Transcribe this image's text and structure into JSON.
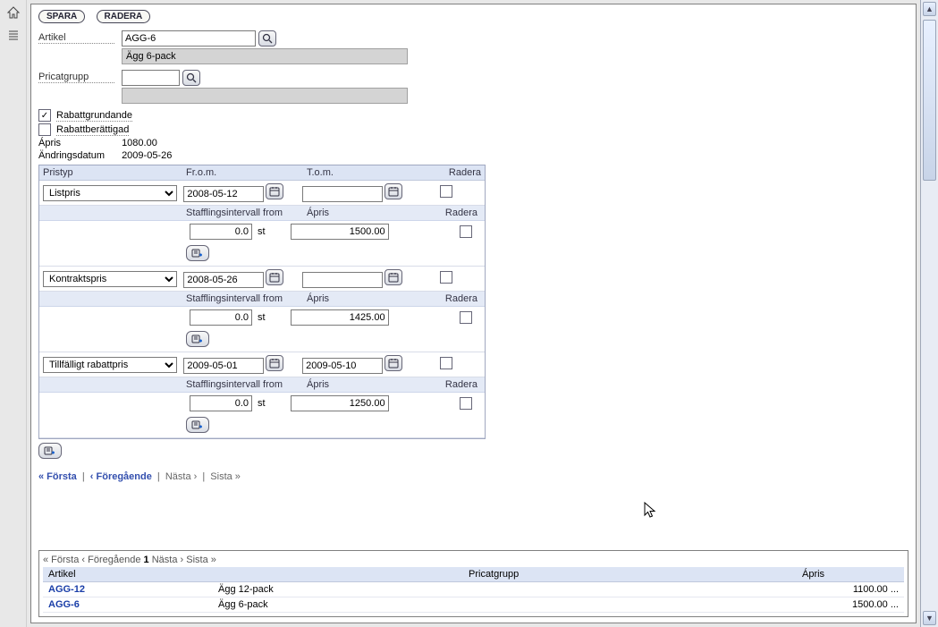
{
  "toolbar": {
    "save": "SPARA",
    "delete": "RADERA"
  },
  "form": {
    "artikel_label": "Artikel",
    "artikel_code": "AGG-6",
    "artikel_desc": "Ägg 6-pack",
    "pricat_label": "Pricatgrupp",
    "pricat_code": "",
    "pricat_desc": "",
    "rabatt_grundande": "Rabattgrundande",
    "rabatt_berattigad": "Rabattberättigad",
    "rabatt_grundande_checked": true,
    "rabatt_berattigad_checked": false,
    "apris_label": "Ápris",
    "apris_value": "1080.00",
    "andring_label": "Ändringsdatum",
    "andring_value": "2009-05-26"
  },
  "priceHeaders": {
    "pristyp": "Pristyp",
    "from": "Fr.o.m.",
    "tom": "T.o.m.",
    "radera": "Radera",
    "staff_from": "Stafflingsintervall from",
    "apris": "Ápris"
  },
  "priceRows": [
    {
      "type": "Listpris",
      "from": "2008-05-12",
      "to": "",
      "staff": {
        "from": "0.0",
        "unit": "st",
        "apris": "1500.00"
      }
    },
    {
      "type": "Kontraktspris",
      "from": "2008-05-26",
      "to": "",
      "staff": {
        "from": "0.0",
        "unit": "st",
        "apris": "1425.00"
      }
    },
    {
      "type": "Tillfälligt rabattpris",
      "from": "2009-05-01",
      "to": "2009-05-10",
      "staff": {
        "from": "0.0",
        "unit": "st",
        "apris": "1250.00"
      }
    }
  ],
  "pager": {
    "first": "« Första",
    "prev": "‹ Föregående",
    "next": "Nästa ›",
    "last": "Sista »"
  },
  "bottom": {
    "pager": {
      "first": "« Första",
      "prev": "‹ Föregående",
      "page": "1",
      "next": "Nästa ›",
      "last": "Sista »"
    },
    "headers": {
      "artikel": "Artikel",
      "pricat": "Pricatgrupp",
      "apris": "Ápris"
    },
    "rows": [
      {
        "code": "AGG-12",
        "desc": "Ägg 12-pack",
        "grp": "",
        "apris": "1100.00 ..."
      },
      {
        "code": "AGG-6",
        "desc": "Ägg 6-pack",
        "grp": "",
        "apris": "1500.00 ..."
      }
    ]
  },
  "colors": {
    "header_bg": "#dce4f4",
    "subheader_bg": "#e4eaf6",
    "border": "#a0a8c0",
    "link": "#334fae",
    "readonly_bg": "#d4d4d4",
    "page_bg": "#b8c4d8"
  }
}
